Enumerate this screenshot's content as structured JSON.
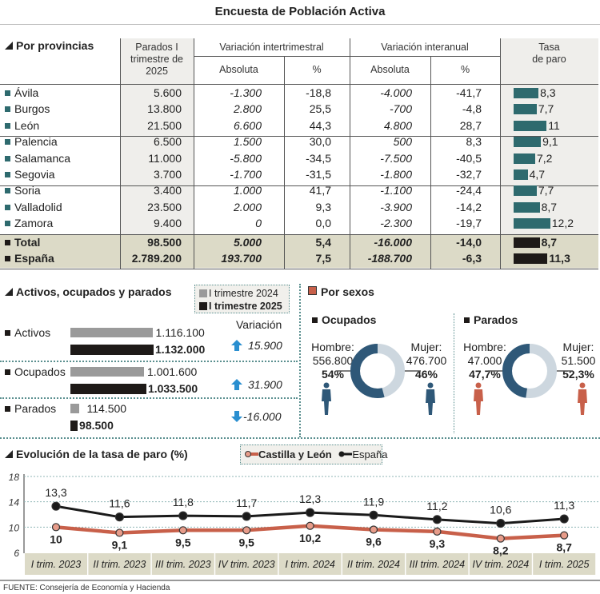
{
  "title": "Encuesta de Población Activa",
  "provincias": {
    "heading": "Por provincias",
    "headers": {
      "parados": "Parados I trimestre de 2025",
      "intertrimestral": "Variación intertrimestral",
      "interanual": "Variación interanual",
      "absoluta": "Absoluta",
      "pct": "%",
      "tasa": "Tasa de paro"
    },
    "rows": [
      {
        "name": "Ávila",
        "parados": "5.600",
        "inter_abs": "-1.300",
        "inter_pct": "-18,8",
        "anual_abs": "-4.000",
        "anual_pct": "-41,7",
        "tasa": 8.3,
        "tasa_label": "8,3"
      },
      {
        "name": "Burgos",
        "parados": "13.800",
        "inter_abs": "2.800",
        "inter_pct": "25,5",
        "anual_abs": "-700",
        "anual_pct": "-4,8",
        "tasa": 7.7,
        "tasa_label": "7,7"
      },
      {
        "name": "León",
        "parados": "21.500",
        "inter_abs": "6.600",
        "inter_pct": "44,3",
        "anual_abs": "4.800",
        "anual_pct": "28,7",
        "tasa": 11,
        "tasa_label": "11"
      },
      {
        "name": "Palencia",
        "parados": "6.500",
        "inter_abs": "1.500",
        "inter_pct": "30,0",
        "anual_abs": "500",
        "anual_pct": "8,3",
        "tasa": 9.1,
        "tasa_label": "9,1"
      },
      {
        "name": "Salamanca",
        "parados": "11.000",
        "inter_abs": "-5.800",
        "inter_pct": "-34,5",
        "anual_abs": "-7.500",
        "anual_pct": "-40,5",
        "tasa": 7.2,
        "tasa_label": "7,2"
      },
      {
        "name": "Segovia",
        "parados": "3.700",
        "inter_abs": "-1.700",
        "inter_pct": "-31,5",
        "anual_abs": "-1.800",
        "anual_pct": "-32,7",
        "tasa": 4.7,
        "tasa_label": "4,7"
      },
      {
        "name": "Soria",
        "parados": "3.400",
        "inter_abs": "1.000",
        "inter_pct": "41,7",
        "anual_abs": "-1.100",
        "anual_pct": "-24,4",
        "tasa": 7.7,
        "tasa_label": "7,7"
      },
      {
        "name": "Valladolid",
        "parados": "23.500",
        "inter_abs": "2.000",
        "inter_pct": "9,3",
        "anual_abs": "-3.900",
        "anual_pct": "-14,2",
        "tasa": 8.7,
        "tasa_label": "8,7"
      },
      {
        "name": "Zamora",
        "parados": "9.400",
        "inter_abs": "0",
        "inter_pct": "0,0",
        "anual_abs": "-2.300",
        "anual_pct": "-19,7",
        "tasa": 12.2,
        "tasa_label": "12,2"
      },
      {
        "name": "Total",
        "parados": "98.500",
        "inter_abs": "5.000",
        "inter_pct": "5,4",
        "anual_abs": "-16.000",
        "anual_pct": "-14,0",
        "tasa": 8.7,
        "tasa_label": "8,7",
        "total": true
      },
      {
        "name": "España",
        "parados": "2.789.200",
        "inter_abs": "193.700",
        "inter_pct": "7,5",
        "anual_abs": "-188.700",
        "anual_pct": "-6,3",
        "tasa": 11.3,
        "tasa_label": "11,3",
        "total": true
      }
    ]
  },
  "activos": {
    "heading": "Activos, ocupados y parados",
    "legend": [
      "I trimestre 2024",
      "I trimestre 2025"
    ],
    "variacion_label": "Variación",
    "rows": [
      {
        "name": "Activos",
        "v2024": 1116100,
        "l2024": "1.116.100",
        "v2025": 1132000,
        "l2025": "1.132.000",
        "var": "15.900",
        "dir": "up"
      },
      {
        "name": "Ocupados",
        "v2024": 1001600,
        "l2024": "1.001.600",
        "v2025": 1033500,
        "l2025": "1.033.500",
        "var": "31.900",
        "dir": "up"
      },
      {
        "name": "Parados",
        "v2024": 114500,
        "l2024": "114.500",
        "v2025": 98500,
        "l2025": "98.500",
        "var": "-16.000",
        "dir": "down"
      }
    ]
  },
  "sexos": {
    "heading": "Por sexos",
    "groups": [
      {
        "name": "Ocupados",
        "hombre_label": "Hombre:",
        "hombre": "556.800",
        "hombre_pct": "54%",
        "mujer_label": "Mujer:",
        "mujer": "476.700",
        "mujer_pct": "46%",
        "hombre_share": 54,
        "figure_color": "#2f5878"
      },
      {
        "name": "Parados",
        "hombre_label": "Hombre:",
        "hombre": "47.000",
        "hombre_pct": "47,7%",
        "mujer_label": "Mujer:",
        "mujer": "51.500",
        "mujer_pct": "52,3%",
        "hombre_share": 47.7,
        "figure_color": "#c8604a"
      }
    ]
  },
  "chart_data": {
    "type": "line",
    "title": "Evolución de la tasa de paro (%)",
    "categories": [
      "I trim. 2023",
      "II trim. 2023",
      "III trim. 2023",
      "IV trim. 2023",
      "I trim. 2024",
      "II trim. 2024",
      "III trim. 2024",
      "IV trim. 2024",
      "I trim. 2025"
    ],
    "yticks": [
      6,
      10,
      14,
      18
    ],
    "ylim": [
      6,
      18
    ],
    "grid": true,
    "series": [
      {
        "name": "Castilla y León",
        "values": [
          10,
          9.1,
          9.5,
          9.5,
          10.2,
          9.6,
          9.3,
          8.2,
          8.7
        ],
        "labels": [
          "10",
          "9,1",
          "9,5",
          "9,5",
          "10,2",
          "9,6",
          "9,3",
          "8,2",
          "8,7"
        ],
        "color": "#c8604a"
      },
      {
        "name": "España",
        "values": [
          13.3,
          11.6,
          11.8,
          11.7,
          12.3,
          11.9,
          11.2,
          10.6,
          11.3
        ],
        "labels": [
          "13,3",
          "11,6",
          "11,8",
          "11,7",
          "12,3",
          "11,9",
          "11,2",
          "10,6",
          "11,3"
        ],
        "color": "#1a1a1a"
      }
    ]
  },
  "colors": {
    "teal": "#2e6a6e",
    "dark": "#1e1a18",
    "gray": "#9a9a9a",
    "donut_dark": "#2f5878",
    "donut_light": "#cdd7df",
    "arrow": "#2a8fd0"
  },
  "source": "FUENTE: Consejería de Economía y Hacienda"
}
